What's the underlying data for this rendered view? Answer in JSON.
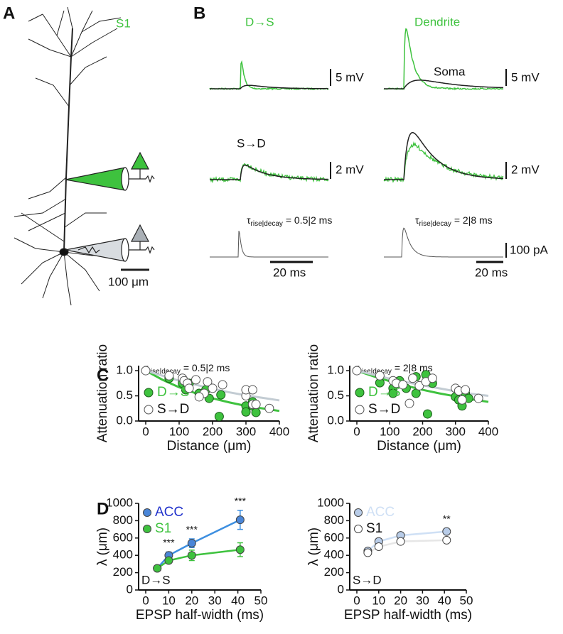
{
  "panel_labels": [
    "A",
    "B",
    "C",
    "D"
  ],
  "panel_a": {
    "region": "S1",
    "scale": "100 μm"
  },
  "panel_b": {
    "col1_title": "D→S",
    "col2_title": "Dendrite",
    "soma_label": "Soma",
    "row2_label": "S→D",
    "v_scales": [
      "5 mV",
      "5 mV",
      "2 mV",
      "2 mV",
      "100 pA"
    ],
    "t_scales": [
      "20 ms",
      "20 ms"
    ],
    "kinetics": [
      {
        "tau": "τ",
        "sub": "rise|decay",
        "rest": " = 0.5|2 ms"
      },
      {
        "tau": "τ",
        "sub": "rise|decay",
        "rest": " = 2|8 ms"
      }
    ]
  },
  "chart_data": [
    {
      "type": "scatter",
      "annotation": {
        "tau": "τ",
        "sub": "rise|decay",
        "rest": " = 0.5|2 ms"
      },
      "xlabel": "Distance (μm)",
      "ylabel": "Attenuation ratio",
      "xlim": [
        0,
        400
      ],
      "xticks": [
        0,
        100,
        200,
        300,
        400
      ],
      "ylim": [
        0,
        1.1
      ],
      "yticks": [
        {
          "value": 0,
          "label": "0.0"
        },
        {
          "value": 0.5,
          "label": "0.5"
        },
        {
          "value": 1,
          "label": "1.0"
        }
      ],
      "series": [
        {
          "name": "D→S",
          "color": "#3ec23e",
          "x": [
            70,
            110,
            120,
            130,
            160,
            180,
            190,
            225,
            220,
            300,
            300,
            320,
            330,
            320
          ],
          "values": [
            0.85,
            0.75,
            0.62,
            0.75,
            0.55,
            0.62,
            0.45,
            0.52,
            0.09,
            0.3,
            0.18,
            0.3,
            0.17,
            0.38
          ]
        },
        {
          "name": "S→D",
          "color": "#ffffff",
          "x": [
            0,
            70,
            110,
            115,
            125,
            130,
            150,
            175,
            185,
            200,
            230,
            300,
            300,
            320,
            320,
            330,
            370,
            160
          ],
          "values": [
            1.0,
            0.9,
            0.85,
            0.8,
            0.75,
            0.65,
            0.82,
            0.55,
            0.78,
            0.65,
            0.72,
            0.5,
            0.62,
            0.62,
            0.33,
            0.33,
            0.25,
            0.48
          ]
        }
      ],
      "fits": [
        {
          "color": "#3ec23e",
          "x": [
            0,
            50,
            100,
            150,
            200,
            250,
            300,
            350,
            400
          ],
          "values": [
            1,
            0.82,
            0.67,
            0.55,
            0.45,
            0.37,
            0.3,
            0.25,
            0.2
          ]
        },
        {
          "color": "#c3ccd3",
          "x": [
            0,
            50,
            100,
            150,
            200,
            250,
            300,
            350,
            400
          ],
          "values": [
            1,
            0.9,
            0.8,
            0.72,
            0.64,
            0.57,
            0.51,
            0.46,
            0.41
          ]
        }
      ]
    },
    {
      "type": "scatter",
      "annotation": {
        "tau": "τ",
        "sub": "rise|decay",
        "rest": " = 2|8 ms"
      },
      "xlabel": "Distance (μm)",
      "ylabel": "Attenuation ratio",
      "xlim": [
        0,
        400
      ],
      "xticks": [
        0,
        100,
        200,
        300,
        400
      ],
      "ylim": [
        0,
        1.1
      ],
      "yticks": [
        {
          "value": 0,
          "label": "0.0"
        },
        {
          "value": 0.5,
          "label": "0.5"
        },
        {
          "value": 1,
          "label": "1.0"
        }
      ],
      "series": [
        {
          "name": "D→S",
          "color": "#3ec23e",
          "x": [
            70,
            110,
            110,
            120,
            130,
            150,
            180,
            210,
            215,
            230,
            300,
            310,
            320,
            330,
            340,
            180
          ],
          "values": [
            0.76,
            0.65,
            0.55,
            0.78,
            0.8,
            0.65,
            0.55,
            0.92,
            0.14,
            0.75,
            0.48,
            0.42,
            0.3,
            0.55,
            0.45,
            0.88
          ]
        },
        {
          "name": "S→D",
          "color": "#ffffff",
          "x": [
            0,
            70,
            110,
            120,
            140,
            160,
            170,
            190,
            210,
            230,
            300,
            310,
            330,
            320,
            370
          ],
          "values": [
            1.0,
            0.9,
            0.8,
            0.75,
            0.72,
            0.35,
            0.85,
            0.7,
            0.78,
            0.85,
            0.65,
            0.6,
            0.62,
            0.42,
            0.45
          ]
        }
      ],
      "fits": [
        {
          "color": "#3ec23e",
          "x": [
            0,
            50,
            100,
            150,
            200,
            250,
            300,
            350,
            400
          ],
          "values": [
            1,
            0.89,
            0.79,
            0.7,
            0.62,
            0.55,
            0.49,
            0.43,
            0.38
          ]
        },
        {
          "color": "#c3ccd3",
          "x": [
            0,
            50,
            100,
            150,
            200,
            250,
            300,
            350,
            400
          ],
          "values": [
            1,
            0.92,
            0.84,
            0.77,
            0.71,
            0.65,
            0.59,
            0.54,
            0.5
          ]
        }
      ]
    },
    {
      "type": "line",
      "corner_label": "D→S",
      "xlabel": "EPSP half-width (ms)",
      "ylabel": "λ (μm)",
      "xlim": [
        0,
        50
      ],
      "xticks": [
        0,
        10,
        20,
        30,
        40,
        50
      ],
      "ylim": [
        0,
        1000
      ],
      "yticks": [
        0,
        200,
        400,
        600,
        800,
        1000
      ],
      "x": [
        5,
        10,
        20,
        41
      ],
      "series": [
        {
          "name": "ACC",
          "color": "#4a86d8",
          "line_color": "#3d8fe0",
          "label_color": "#2233cc",
          "values": [
            250,
            400,
            540,
            810
          ],
          "errors": [
            20,
            40,
            50,
            110
          ]
        },
        {
          "name": "S1",
          "color": "#3ec23e",
          "line_color": "#3ec23e",
          "label_color": "#3ec23e",
          "values": [
            250,
            340,
            400,
            465
          ],
          "errors": [
            15,
            30,
            60,
            80
          ]
        }
      ],
      "significance": [
        {
          "text": "***",
          "index": 1,
          "series": 0
        },
        {
          "text": "***",
          "index": 2,
          "series": 0
        },
        {
          "text": "***",
          "index": 3,
          "series": 0
        }
      ]
    },
    {
      "type": "line",
      "corner_label": "S→D",
      "xlabel": "EPSP half-width (ms)",
      "ylabel": "λ (μm)",
      "xlim": [
        0,
        50
      ],
      "xticks": [
        0,
        10,
        20,
        30,
        40,
        50
      ],
      "ylim": [
        0,
        1000
      ],
      "yticks": [
        0,
        200,
        400,
        600,
        800,
        1000
      ],
      "x": [
        5,
        10,
        20,
        41
      ],
      "series": [
        {
          "name": "ACC",
          "color": "#b8cce8",
          "line_color": "#cfe0f5",
          "label_color": "#cfe0f5",
          "values": [
            450,
            560,
            630,
            675
          ],
          "errors": [
            15,
            25,
            30,
            40
          ]
        },
        {
          "name": "S1",
          "color": "#ffffff",
          "line_color": "#e6e6e6",
          "label_color": "#111111",
          "values": [
            430,
            500,
            560,
            575
          ],
          "errors": [
            15,
            20,
            25,
            30
          ]
        }
      ],
      "significance": [
        {
          "text": "**",
          "index": 3,
          "series": 0
        }
      ]
    }
  ]
}
